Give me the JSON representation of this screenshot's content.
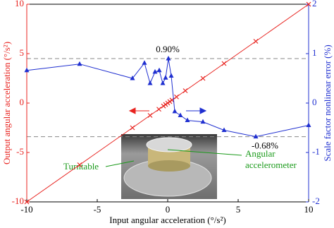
{
  "chart_data": {
    "type": "line",
    "xlabel": "Input angular acceleration (°/s²)",
    "ylabel": "Output angular acceleration (°/s²)",
    "y2label": "Scale factor nonlinear error (%)",
    "xlim": [
      -10,
      10
    ],
    "xticks": [
      -10,
      -5,
      0,
      5,
      10
    ],
    "ylim": [
      -10,
      10
    ],
    "yticks": [
      -10,
      -5,
      0,
      5,
      10
    ],
    "y2lim": [
      -2,
      2
    ],
    "y2ticks": [
      -2,
      -1,
      0,
      1,
      2
    ],
    "series": [
      {
        "color": "#e8231f",
        "marker": "x",
        "x": [
          -10,
          -6.25,
          -2.5,
          -1.25,
          -0.625,
          -0.3,
          -0.15,
          0,
          0.15,
          0.3,
          0.625,
          1.25,
          2.5,
          4,
          6.25,
          10
        ],
        "values": [
          -10,
          -6.25,
          -2.5,
          -1.25,
          -0.625,
          -0.3,
          -0.15,
          0,
          0.15,
          0.3,
          0.625,
          1.25,
          2.5,
          4,
          6.25,
          10
        ]
      },
      {
        "color": "#1f2fd0",
        "marker": "triangle",
        "axis": "y2",
        "x": [
          -10,
          -6.25,
          -2.5,
          -1.65,
          -1.25,
          -0.9,
          -0.6,
          -0.35,
          -0.15,
          0.05,
          0.25,
          0.5,
          0.9,
          1.4,
          2.5,
          4,
          6.25,
          10
        ],
        "values": [
          0.66,
          0.79,
          0.5,
          0.81,
          0.4,
          0.63,
          0.66,
          0.4,
          0.51,
          0.9,
          0.55,
          -0.17,
          -0.25,
          -0.35,
          -0.38,
          -0.55,
          -0.68,
          -0.45
        ]
      }
    ],
    "annotations": [
      {
        "value": 0.9,
        "label": "0.90%"
      },
      {
        "value": -0.68,
        "label": "-0.68%"
      }
    ],
    "inset_labels": [
      "Turntable",
      "Angular",
      "accelerometer"
    ]
  }
}
